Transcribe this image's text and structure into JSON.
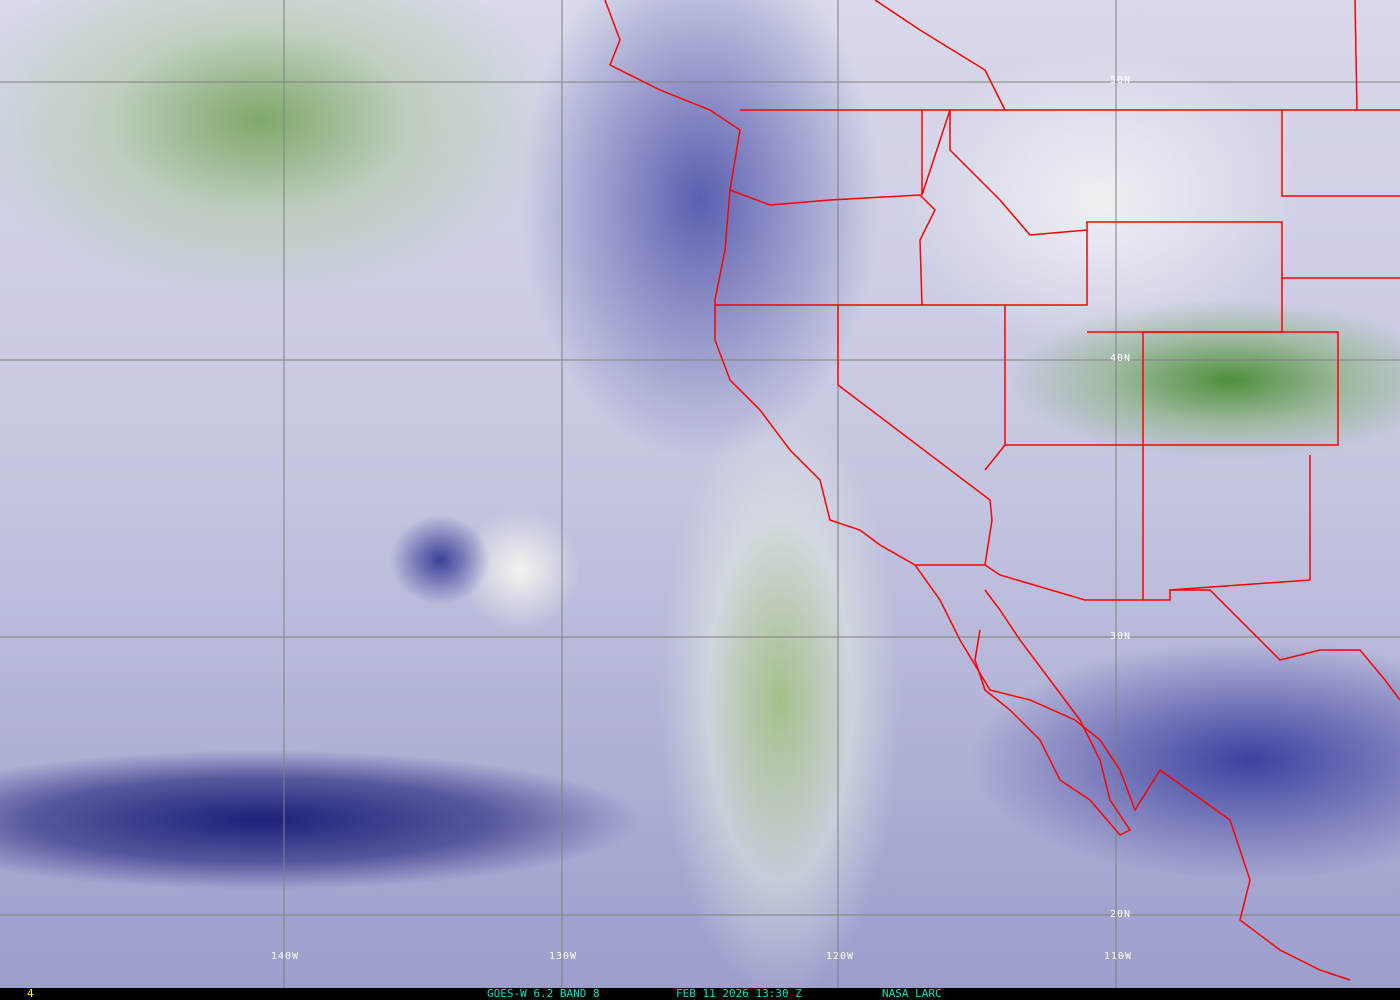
{
  "map": {
    "latitude_labels": [
      "50N",
      "40N",
      "30N",
      "20N"
    ],
    "longitude_labels": [
      "140W",
      "130W",
      "120W",
      "110W"
    ],
    "colors": {
      "grid": "#808080",
      "boundaries": "#ff0000",
      "moist": "#2a2c86",
      "dry_cloud": "#5e8f48"
    }
  },
  "status_bar": {
    "frame_number": "4",
    "satellite": "GOES-W 6.2 BAND 8",
    "datetime": "FEB 11 2026 13:30 Z",
    "source": "NASA LARC",
    "colors": {
      "frame": "#ffff00",
      "text": "#00e0c0"
    }
  }
}
